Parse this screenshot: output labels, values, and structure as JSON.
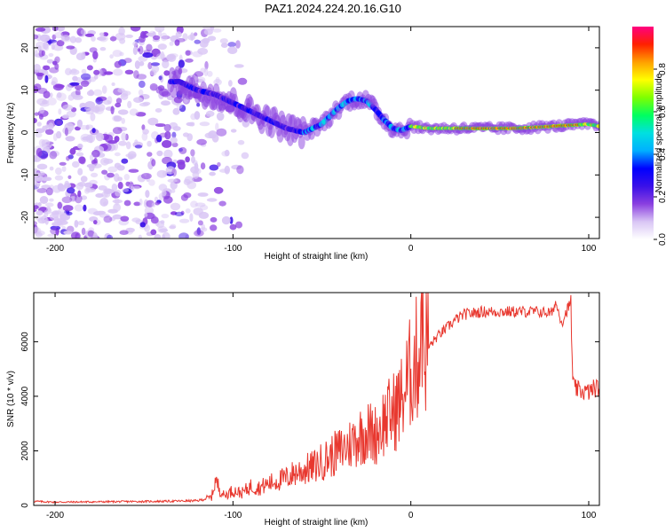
{
  "figure": {
    "title": "PAZ1.2024.224.20.16.G10"
  },
  "chart_data": [
    {
      "type": "heatmap",
      "xlabel": "Height of straight line (km)",
      "ylabel": "Frequency (Hz)",
      "xlim": [
        -212,
        106
      ],
      "ylim": [
        -25,
        25
      ],
      "x_ticks": [
        -200,
        -100,
        0,
        100
      ],
      "y_ticks": [
        -20,
        -10,
        0,
        10,
        20
      ],
      "x_tick_labels": [
        "-200",
        "-100",
        "0",
        "100"
      ],
      "y_tick_labels": [
        "-20",
        "-10",
        "0",
        "10",
        "20"
      ],
      "colorbar": {
        "label": "Normalized spectral amplitude",
        "range": [
          0,
          1
        ],
        "ticks": [
          0.0,
          0.2,
          0.4,
          0.6,
          0.8
        ],
        "tick_labels": [
          "0.0",
          "0.2",
          "0.4",
          "0.6",
          "0.8"
        ],
        "colormap": [
          "#ffffff",
          "#d9c6f5",
          "#8a3fe0",
          "#3a10e8",
          "#0000ff",
          "#00b0ff",
          "#00e0e0",
          "#00ff60",
          "#7fff00",
          "#ffff00",
          "#ffa000",
          "#ff2000",
          "#ff0080"
        ]
      },
      "ridge": {
        "x": [
          -130,
          -120,
          -110,
          -100,
          -90,
          -80,
          -70,
          -60,
          -50,
          -45,
          -40,
          -35,
          -30,
          -25,
          -20,
          -15,
          -10,
          -5,
          0,
          10,
          20,
          40,
          60,
          80,
          100,
          106
        ],
        "y": [
          12,
          10,
          9,
          7,
          5,
          3,
          1,
          0,
          2,
          4,
          6,
          7.5,
          8,
          7.5,
          5.5,
          3,
          1,
          0.5,
          1.5,
          1,
          1,
          1,
          1,
          1.5,
          2,
          1.5
        ]
      },
      "noise_region_x": [
        -212,
        -100
      ],
      "grid": false
    },
    {
      "type": "line",
      "xlabel": "Height of straight line (km)",
      "ylabel": "SNR (10 * v/v)",
      "xlim": [
        -212,
        106
      ],
      "ylim": [
        0,
        7800
      ],
      "x_ticks": [
        -200,
        -100,
        0,
        100
      ],
      "y_ticks": [
        0,
        2000,
        4000,
        6000
      ],
      "x_tick_labels": [
        "-200",
        "-100",
        "0",
        "100"
      ],
      "y_tick_labels": [
        "0",
        "2000",
        "4000",
        "6000"
      ],
      "series": [
        {
          "color": "#e8382f",
          "x": [
            -212,
            -200,
            -180,
            -160,
            -140,
            -120,
            -112,
            -110,
            -105,
            -100,
            -95,
            -90,
            -85,
            -80,
            -75,
            -70,
            -65,
            -60,
            -55,
            -50,
            -45,
            -40,
            -35,
            -30,
            -25,
            -20,
            -15,
            -10,
            -5,
            0,
            2,
            5,
            6,
            7,
            10,
            15,
            20,
            25,
            30,
            40,
            50,
            60,
            70,
            80,
            81,
            85,
            88,
            90,
            91,
            92,
            95,
            100,
            103,
            106
          ],
          "y": [
            150,
            120,
            130,
            140,
            150,
            170,
            300,
            900,
            350,
            550,
            450,
            700,
            650,
            800,
            900,
            1000,
            1200,
            1300,
            1400,
            1600,
            1800,
            2000,
            2200,
            2500,
            2700,
            2600,
            3100,
            3400,
            3900,
            4900,
            5200,
            5600,
            7800,
            5800,
            5800,
            6200,
            6500,
            6800,
            7000,
            7100,
            7100,
            7100,
            7100,
            7050,
            7500,
            6700,
            7200,
            7400,
            4500,
            4300,
            4200,
            4150,
            4300,
            4300
          ]
        }
      ],
      "grid": false
    }
  ]
}
